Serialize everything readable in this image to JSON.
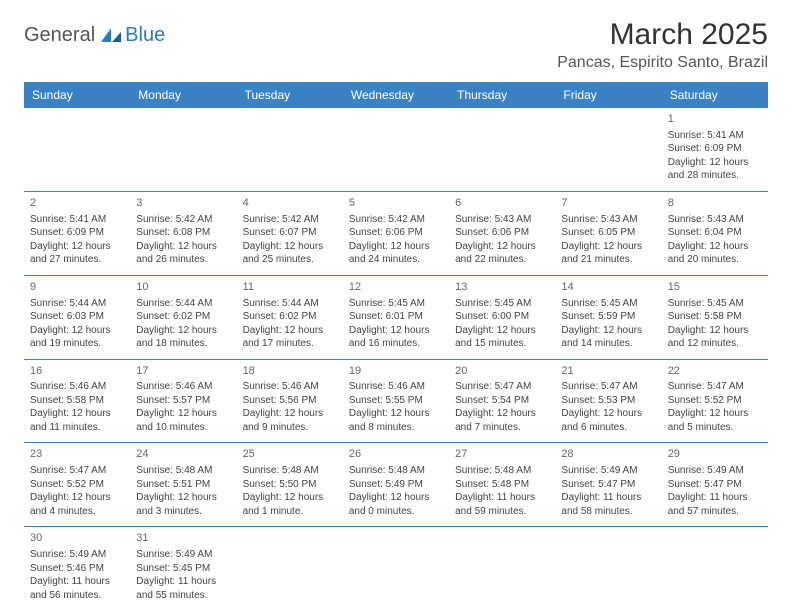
{
  "logo": {
    "general": "General",
    "blue": "Blue"
  },
  "title": "March 2025",
  "subtitle": "Pancas, Espirito Santo, Brazil",
  "colors": {
    "header_bg": "#3b82c4",
    "header_text": "#ffffff",
    "rule": "#3b82c4",
    "logo_blue": "#2b7bbf",
    "text": "#444444"
  },
  "day_headers": [
    "Sunday",
    "Monday",
    "Tuesday",
    "Wednesday",
    "Thursday",
    "Friday",
    "Saturday"
  ],
  "weeks": [
    [
      null,
      null,
      null,
      null,
      null,
      null,
      {
        "n": "1",
        "sr": "5:41 AM",
        "ss": "6:09 PM",
        "dl": "12 hours and 28 minutes."
      }
    ],
    [
      {
        "n": "2",
        "sr": "5:41 AM",
        "ss": "6:09 PM",
        "dl": "12 hours and 27 minutes."
      },
      {
        "n": "3",
        "sr": "5:42 AM",
        "ss": "6:08 PM",
        "dl": "12 hours and 26 minutes."
      },
      {
        "n": "4",
        "sr": "5:42 AM",
        "ss": "6:07 PM",
        "dl": "12 hours and 25 minutes."
      },
      {
        "n": "5",
        "sr": "5:42 AM",
        "ss": "6:06 PM",
        "dl": "12 hours and 24 minutes."
      },
      {
        "n": "6",
        "sr": "5:43 AM",
        "ss": "6:06 PM",
        "dl": "12 hours and 22 minutes."
      },
      {
        "n": "7",
        "sr": "5:43 AM",
        "ss": "6:05 PM",
        "dl": "12 hours and 21 minutes."
      },
      {
        "n": "8",
        "sr": "5:43 AM",
        "ss": "6:04 PM",
        "dl": "12 hours and 20 minutes."
      }
    ],
    [
      {
        "n": "9",
        "sr": "5:44 AM",
        "ss": "6:03 PM",
        "dl": "12 hours and 19 minutes."
      },
      {
        "n": "10",
        "sr": "5:44 AM",
        "ss": "6:02 PM",
        "dl": "12 hours and 18 minutes."
      },
      {
        "n": "11",
        "sr": "5:44 AM",
        "ss": "6:02 PM",
        "dl": "12 hours and 17 minutes."
      },
      {
        "n": "12",
        "sr": "5:45 AM",
        "ss": "6:01 PM",
        "dl": "12 hours and 16 minutes."
      },
      {
        "n": "13",
        "sr": "5:45 AM",
        "ss": "6:00 PM",
        "dl": "12 hours and 15 minutes."
      },
      {
        "n": "14",
        "sr": "5:45 AM",
        "ss": "5:59 PM",
        "dl": "12 hours and 14 minutes."
      },
      {
        "n": "15",
        "sr": "5:45 AM",
        "ss": "5:58 PM",
        "dl": "12 hours and 12 minutes."
      }
    ],
    [
      {
        "n": "16",
        "sr": "5:46 AM",
        "ss": "5:58 PM",
        "dl": "12 hours and 11 minutes."
      },
      {
        "n": "17",
        "sr": "5:46 AM",
        "ss": "5:57 PM",
        "dl": "12 hours and 10 minutes."
      },
      {
        "n": "18",
        "sr": "5:46 AM",
        "ss": "5:56 PM",
        "dl": "12 hours and 9 minutes."
      },
      {
        "n": "19",
        "sr": "5:46 AM",
        "ss": "5:55 PM",
        "dl": "12 hours and 8 minutes."
      },
      {
        "n": "20",
        "sr": "5:47 AM",
        "ss": "5:54 PM",
        "dl": "12 hours and 7 minutes."
      },
      {
        "n": "21",
        "sr": "5:47 AM",
        "ss": "5:53 PM",
        "dl": "12 hours and 6 minutes."
      },
      {
        "n": "22",
        "sr": "5:47 AM",
        "ss": "5:52 PM",
        "dl": "12 hours and 5 minutes."
      }
    ],
    [
      {
        "n": "23",
        "sr": "5:47 AM",
        "ss": "5:52 PM",
        "dl": "12 hours and 4 minutes."
      },
      {
        "n": "24",
        "sr": "5:48 AM",
        "ss": "5:51 PM",
        "dl": "12 hours and 3 minutes."
      },
      {
        "n": "25",
        "sr": "5:48 AM",
        "ss": "5:50 PM",
        "dl": "12 hours and 1 minute."
      },
      {
        "n": "26",
        "sr": "5:48 AM",
        "ss": "5:49 PM",
        "dl": "12 hours and 0 minutes."
      },
      {
        "n": "27",
        "sr": "5:48 AM",
        "ss": "5:48 PM",
        "dl": "11 hours and 59 minutes."
      },
      {
        "n": "28",
        "sr": "5:49 AM",
        "ss": "5:47 PM",
        "dl": "11 hours and 58 minutes."
      },
      {
        "n": "29",
        "sr": "5:49 AM",
        "ss": "5:47 PM",
        "dl": "11 hours and 57 minutes."
      }
    ],
    [
      {
        "n": "30",
        "sr": "5:49 AM",
        "ss": "5:46 PM",
        "dl": "11 hours and 56 minutes."
      },
      {
        "n": "31",
        "sr": "5:49 AM",
        "ss": "5:45 PM",
        "dl": "11 hours and 55 minutes."
      },
      null,
      null,
      null,
      null,
      null
    ]
  ],
  "labels": {
    "sunrise": "Sunrise: ",
    "sunset": "Sunset: ",
    "daylight": "Daylight: "
  }
}
